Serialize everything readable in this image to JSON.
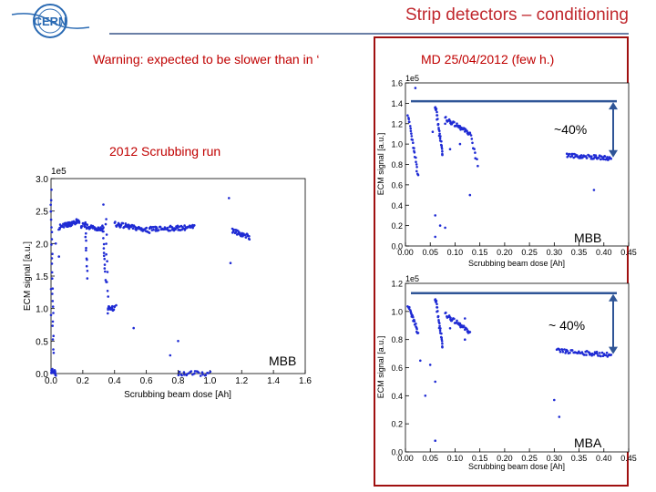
{
  "slide": {
    "title": "Strip detectors – conditioning",
    "warning": "Warning: expected to be slower than in ‘",
    "md_label": "MD 25/04/2012 (few h.)",
    "scrub_label": "2012 Scrubbing run",
    "logo_text": "CERN"
  },
  "colors": {
    "title": "#c0272d",
    "red_text": "#c00000",
    "frame": "#a01010",
    "data": "#1f2bd4",
    "arrow": "#2f5597",
    "rule": "#6a7fa6"
  },
  "chart_data": [
    {
      "id": "scrubbing",
      "type": "scatter",
      "title": "2012 Scrubbing run",
      "xlabel": "Scrubbing beam dose [Ah]",
      "ylabel": "ECM signal [a.u.]",
      "scale_label": "1e5",
      "xlim": [
        0,
        1.6
      ],
      "ylim": [
        0,
        3.0
      ],
      "xticks": [
        "0.0",
        "0.2",
        "0.4",
        "0.6",
        "0.8",
        "1.0",
        "1.2",
        "1.4",
        "1.6"
      ],
      "yticks": [
        "0.0",
        "0.5",
        "1.0",
        "1.5",
        "2.0",
        "2.5",
        "3.0"
      ],
      "annotation": "MBB",
      "segments": [
        {
          "x0": 0.05,
          "x1": 0.18,
          "y0": 2.25,
          "y1": 2.35,
          "n": 55
        },
        {
          "x0": 0.19,
          "x1": 0.33,
          "y0": 2.28,
          "y1": 2.22,
          "n": 45
        },
        {
          "x0": 0.4,
          "x1": 0.62,
          "y0": 2.3,
          "y1": 2.2,
          "n": 60
        },
        {
          "x0": 0.62,
          "x1": 0.9,
          "y0": 2.22,
          "y1": 2.25,
          "n": 70
        },
        {
          "x0": 1.14,
          "x1": 1.25,
          "y0": 2.2,
          "y1": 2.1,
          "n": 35
        },
        {
          "x0": 0.36,
          "x1": 0.4,
          "y0": 1.0,
          "y1": 1.0,
          "n": 18
        },
        {
          "x0": 0.8,
          "x1": 1.0,
          "y0": 0.0,
          "y1": 0.0,
          "n": 25
        },
        {
          "x0": 0.0,
          "x1": 0.03,
          "y0": 0.05,
          "y1": 0.0,
          "n": 20
        },
        {
          "x0": 0.0,
          "x1": 0.015,
          "y0": 2.8,
          "y1": 0.3,
          "n": 25
        },
        {
          "x0": 0.215,
          "x1": 0.23,
          "y0": 2.3,
          "y1": 1.5,
          "n": 12
        },
        {
          "x0": 0.325,
          "x1": 0.345,
          "y0": 2.3,
          "y1": 1.4,
          "n": 14
        },
        {
          "x0": 0.345,
          "x1": 0.36,
          "y0": 2.4,
          "y1": 0.9,
          "n": 12
        }
      ],
      "points": [
        [
          0.33,
          2.6
        ],
        [
          0.03,
          2.0
        ],
        [
          0.05,
          1.8
        ],
        [
          0.0,
          1.3
        ],
        [
          0.0,
          0.9
        ],
        [
          0.8,
          0.5
        ],
        [
          1.12,
          2.7
        ],
        [
          1.13,
          1.7
        ],
        [
          0.52,
          0.7
        ],
        [
          0.41,
          1.05
        ],
        [
          0.75,
          0.28
        ]
      ]
    },
    {
      "id": "md_mbb",
      "type": "scatter",
      "title": "MD 25/04/2012 (few h.)",
      "xlabel": "Scrubbing beam dose [Ah]",
      "ylabel": "ECM signal [a.u.]",
      "scale_label": "1e5",
      "xlim": [
        0,
        0.45
      ],
      "ylim": [
        0,
        1.6
      ],
      "xticks": [
        "0.00",
        "0.05",
        "0.10",
        "0.15",
        "0.20",
        "0.25",
        "0.30",
        "0.35",
        "0.40",
        "0.45"
      ],
      "yticks": [
        "0.0",
        "0.2",
        "0.4",
        "0.6",
        "0.8",
        "1.0",
        "1.2",
        "1.4",
        "1.6"
      ],
      "annotation": "MBB",
      "arrow_label": "~40%",
      "arrow_from": 1.42,
      "arrow_to": 0.86,
      "segments": [
        {
          "x0": 0.005,
          "x1": 0.025,
          "y0": 1.3,
          "y1": 0.7,
          "n": 25
        },
        {
          "x0": 0.06,
          "x1": 0.075,
          "y0": 1.38,
          "y1": 0.9,
          "n": 30
        },
        {
          "x0": 0.08,
          "x1": 0.13,
          "y0": 1.25,
          "y1": 1.1,
          "n": 40
        },
        {
          "x0": 0.13,
          "x1": 0.145,
          "y0": 1.1,
          "y1": 0.8,
          "n": 10
        },
        {
          "x0": 0.325,
          "x1": 0.415,
          "y0": 0.89,
          "y1": 0.86,
          "n": 60
        }
      ],
      "points": [
        [
          0.08,
          1.2
        ],
        [
          0.02,
          1.55
        ],
        [
          0.09,
          0.95
        ],
        [
          0.11,
          1.0
        ],
        [
          0.055,
          1.12
        ],
        [
          0.06,
          0.3
        ],
        [
          0.07,
          0.2
        ],
        [
          0.08,
          0.18
        ],
        [
          0.13,
          0.5
        ],
        [
          0.38,
          0.55
        ],
        [
          0.06,
          0.09
        ],
        [
          0.12,
          1.15
        ]
      ]
    },
    {
      "id": "md_mba",
      "type": "scatter",
      "xlabel": "Scrubbing beam dose [Ah]",
      "ylabel": "ECM signal [a.u.]",
      "scale_label": "1e5",
      "xlim": [
        0,
        0.45
      ],
      "ylim": [
        0,
        1.2
      ],
      "xticks": [
        "0.00",
        "0.05",
        "0.10",
        "0.15",
        "0.20",
        "0.25",
        "0.30",
        "0.35",
        "0.40",
        "0.45"
      ],
      "yticks": [
        "0.0",
        "0.2",
        "0.4",
        "0.6",
        "0.8",
        "1.0",
        "1.2"
      ],
      "annotation": "MBA",
      "arrow_label": "~ 40%",
      "arrow_from": 1.13,
      "arrow_to": 0.69,
      "segments": [
        {
          "x0": 0.005,
          "x1": 0.025,
          "y0": 1.05,
          "y1": 0.85,
          "n": 25
        },
        {
          "x0": 0.06,
          "x1": 0.075,
          "y0": 1.1,
          "y1": 0.75,
          "n": 30
        },
        {
          "x0": 0.08,
          "x1": 0.13,
          "y0": 0.98,
          "y1": 0.85,
          "n": 40
        },
        {
          "x0": 0.305,
          "x1": 0.415,
          "y0": 0.72,
          "y1": 0.69,
          "n": 60
        }
      ],
      "points": [
        [
          0.03,
          0.65
        ],
        [
          0.05,
          0.62
        ],
        [
          0.06,
          0.5
        ],
        [
          0.04,
          0.4
        ],
        [
          0.3,
          0.37
        ],
        [
          0.31,
          0.25
        ],
        [
          0.11,
          0.9
        ],
        [
          0.12,
          0.95
        ],
        [
          0.09,
          0.88
        ],
        [
          0.06,
          0.08
        ],
        [
          0.12,
          0.8
        ]
      ]
    }
  ]
}
